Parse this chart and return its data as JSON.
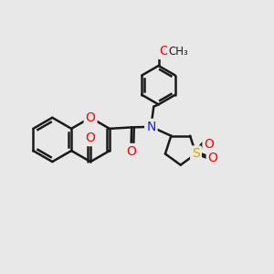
{
  "bg": "#e8e8e8",
  "bond_color": "#1a1a1a",
  "bond_lw": 1.8,
  "atom_colors": {
    "O": "#ff0000",
    "N": "#1a1aff",
    "S": "#ccaa00",
    "C": "#1a1a1a"
  },
  "fs": 10,
  "xlim": [
    0,
    10
  ],
  "ylim": [
    1.5,
    9.5
  ],
  "figsize": [
    3.0,
    3.0
  ],
  "dpi": 100
}
